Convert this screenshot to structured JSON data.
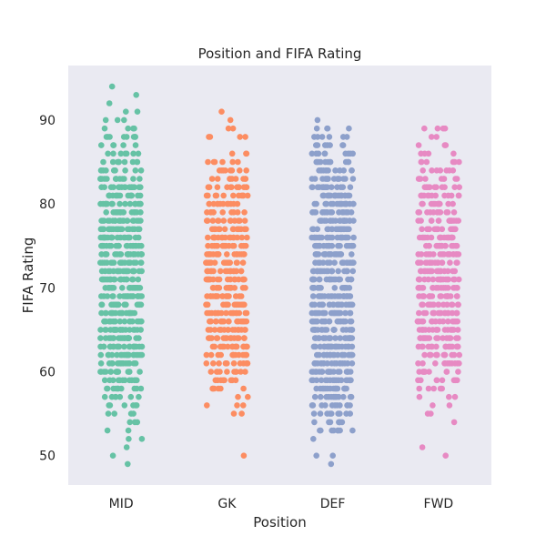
{
  "chart_data": {
    "type": "scatter",
    "subtype": "strip",
    "title": "Position and FIFA Rating",
    "xlabel": "Position",
    "ylabel": "FIFA Rating",
    "categories": [
      "MID",
      "GK",
      "DEF",
      "FWD"
    ],
    "ylim": [
      46.5,
      96.5
    ],
    "yticks": [
      50,
      60,
      70,
      80,
      90
    ],
    "grid": false,
    "background": "#eaeaf2",
    "colors": [
      "#66c2a5",
      "#fc8d62",
      "#8da0cb",
      "#e78ac3"
    ],
    "series": [
      {
        "category": "MID",
        "ratings": {
          "49": 1,
          "50": 1,
          "51": 1,
          "52": 2,
          "53": 2,
          "54": 3,
          "55": 4,
          "56": 6,
          "57": 7,
          "58": 10,
          "59": 12,
          "60": 15,
          "61": 17,
          "62": 19,
          "63": 20,
          "64": 20,
          "65": 20,
          "66": 20,
          "67": 20,
          "68": 20,
          "69": 20,
          "70": 20,
          "71": 20,
          "72": 20,
          "73": 20,
          "74": 20,
          "75": 20,
          "76": 20,
          "77": 20,
          "78": 20,
          "79": 18,
          "80": 16,
          "81": 14,
          "82": 17,
          "83": 13,
          "84": 10,
          "85": 9,
          "86": 7,
          "87": 5,
          "88": 8,
          "89": 4,
          "90": 3,
          "91": 2,
          "92": 1,
          "93": 1,
          "94": 1
        }
      },
      {
        "category": "GK",
        "ratings": {
          "50": 1,
          "55": 2,
          "56": 3,
          "57": 2,
          "58": 6,
          "59": 9,
          "60": 10,
          "61": 12,
          "62": 13,
          "63": 15,
          "64": 15,
          "65": 16,
          "66": 17,
          "67": 17,
          "68": 17,
          "69": 17,
          "70": 17,
          "71": 17,
          "72": 17,
          "73": 17,
          "74": 17,
          "75": 17,
          "76": 16,
          "77": 15,
          "78": 12,
          "79": 11,
          "80": 12,
          "81": 11,
          "82": 12,
          "83": 9,
          "84": 8,
          "85": 6,
          "86": 3,
          "88": 4,
          "89": 2,
          "90": 1,
          "91": 1
        }
      },
      {
        "category": "DEF",
        "ratings": {
          "49": 1,
          "50": 2,
          "52": 1,
          "53": 8,
          "54": 7,
          "55": 9,
          "56": 11,
          "57": 14,
          "58": 16,
          "59": 18,
          "60": 19,
          "61": 20,
          "62": 20,
          "63": 20,
          "64": 20,
          "65": 20,
          "66": 20,
          "67": 20,
          "68": 20,
          "69": 20,
          "70": 20,
          "71": 20,
          "72": 20,
          "73": 20,
          "74": 20,
          "75": 20,
          "76": 20,
          "77": 20,
          "78": 20,
          "79": 20,
          "80": 19,
          "81": 18,
          "82": 16,
          "83": 14,
          "84": 12,
          "85": 11,
          "86": 9,
          "87": 7,
          "88": 6,
          "89": 4,
          "90": 1
        }
      },
      {
        "category": "FWD",
        "ratings": {
          "50": 1,
          "51": 1,
          "54": 1,
          "55": 2,
          "56": 2,
          "57": 3,
          "58": 5,
          "59": 8,
          "60": 10,
          "61": 12,
          "62": 13,
          "63": 15,
          "64": 16,
          "65": 17,
          "66": 17,
          "67": 17,
          "68": 17,
          "69": 17,
          "70": 17,
          "71": 17,
          "72": 17,
          "73": 17,
          "74": 17,
          "75": 17,
          "76": 17,
          "77": 16,
          "78": 14,
          "79": 13,
          "80": 12,
          "81": 12,
          "82": 11,
          "83": 9,
          "84": 7,
          "85": 6,
          "86": 4,
          "87": 3,
          "88": 2,
          "89": 4
        }
      }
    ]
  }
}
